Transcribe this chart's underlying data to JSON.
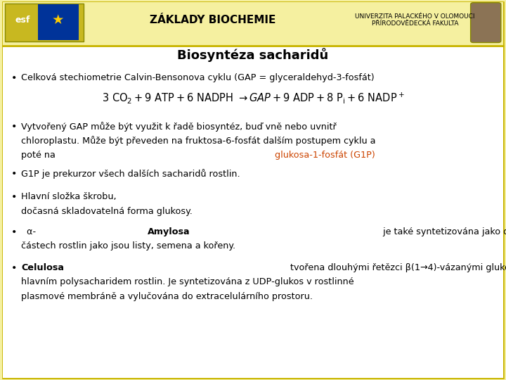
{
  "title": "Biosyntéza sacharidů",
  "content_bg": "#ffffff",
  "header_bg": "#f5f0a0",
  "outer_bg": "#f5f0a0",
  "border_color": "#c8b400",
  "title_color": "#000000",
  "title_fontsize": 13,
  "bullet_fontsize": 9.2,
  "header_center": "ZÁKLADY BIOCHEMIE",
  "header_right": "UNIVERZITA PALACKÉHO V OLOMOUCI\nPŘÍRODOVĚDECKÁ FAKULTA",
  "orange": "#cc4400",
  "black": "#000000"
}
